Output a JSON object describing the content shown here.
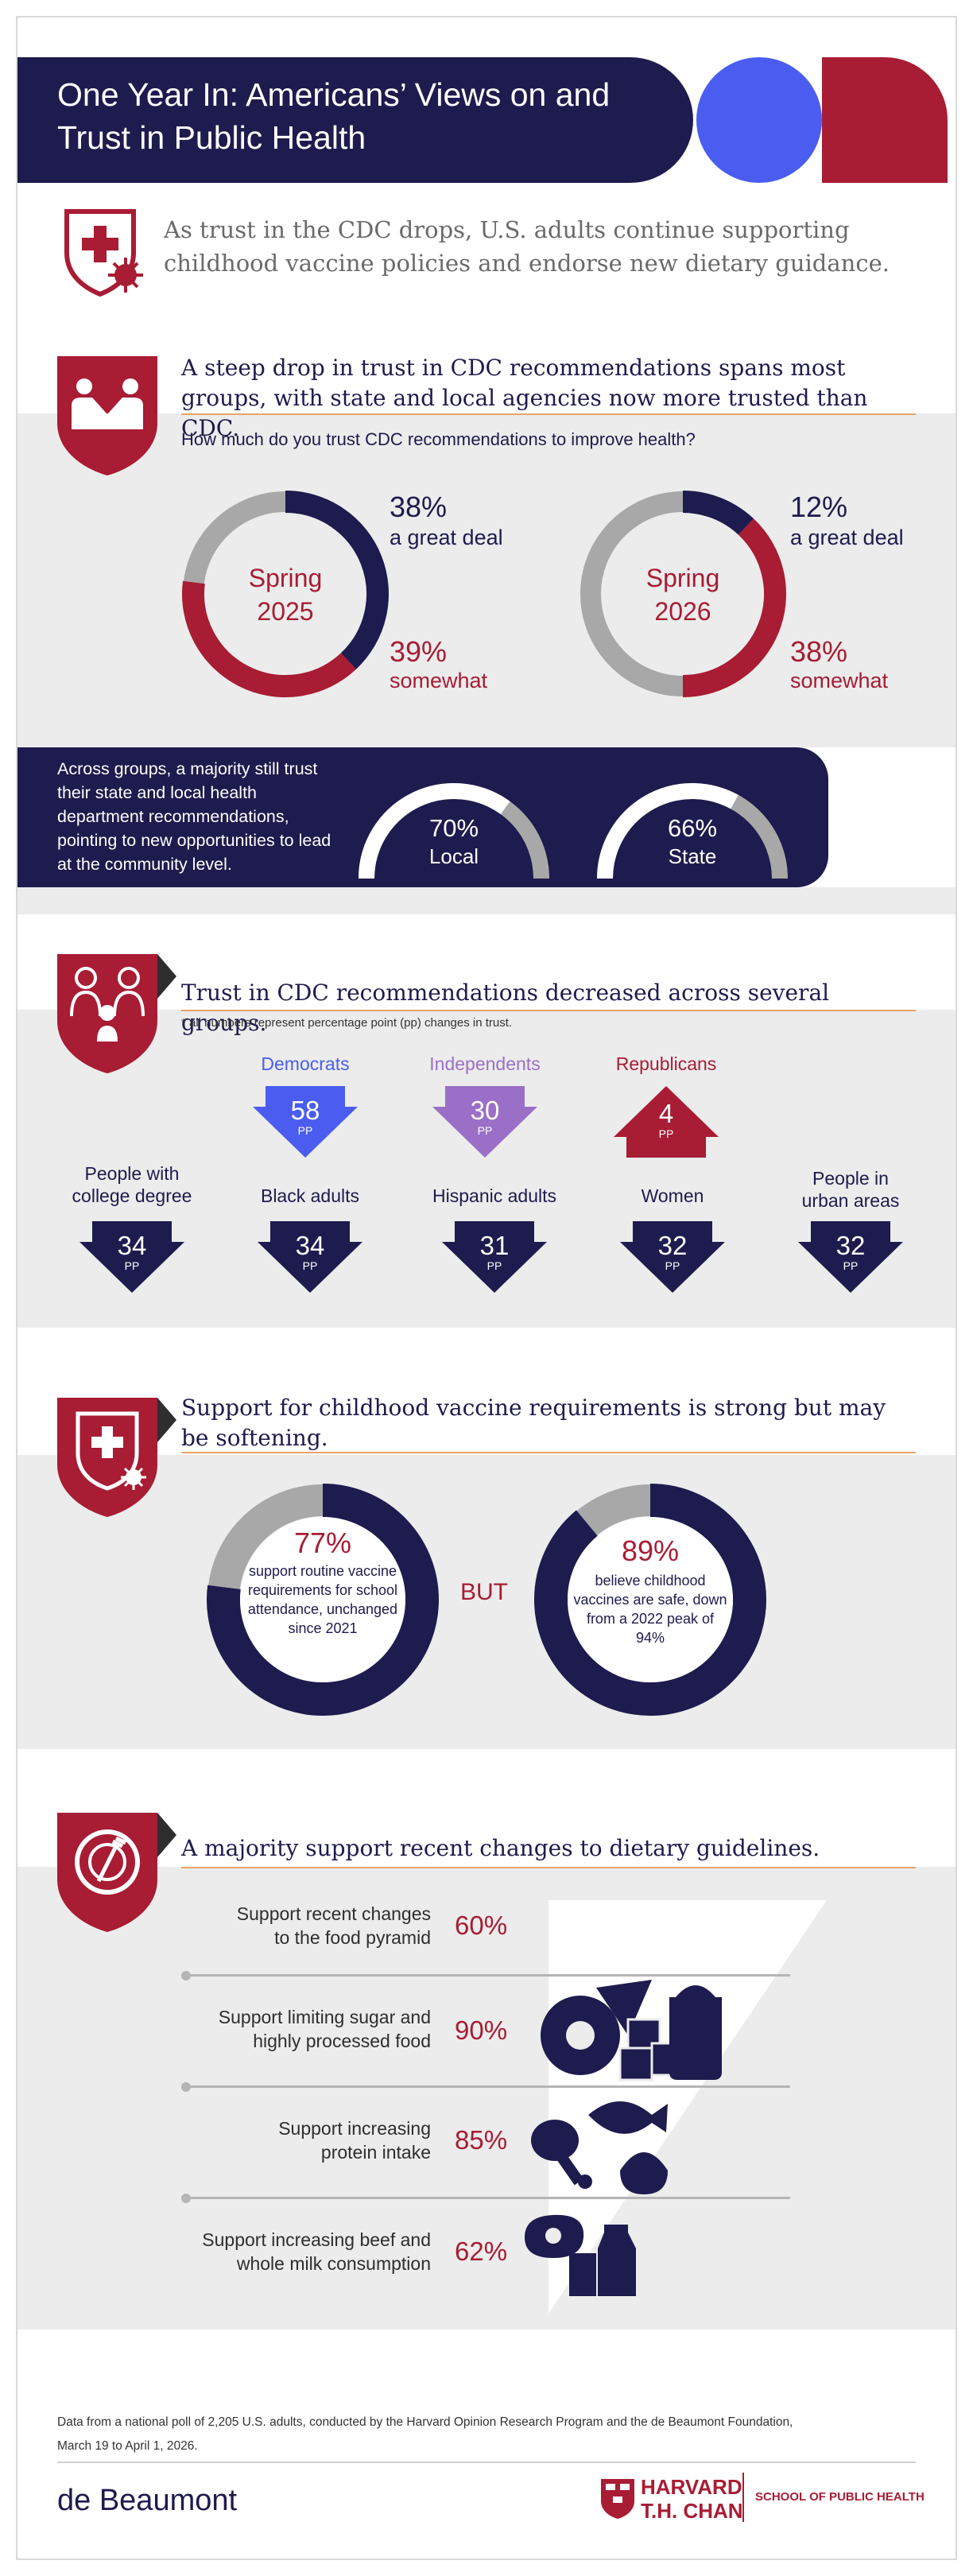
{
  "header": {
    "title": "One Year In: Americans’ Views on and Trust in Public Health",
    "intro": "As trust in the CDC drops, U.S. adults continue supporting childhood vaccine policies and endorse new dietary guidance."
  },
  "section1": {
    "heading": "A steep drop in trust in CDC recommendations spans most groups, with state and local agencies now more trusted than CDC.",
    "question": "How much do you trust CDC recommendations to improve health?",
    "donuts": [
      {
        "label_line1": "Spring",
        "label_line2": "2025",
        "great_deal_pct": "38%",
        "great_deal_label": "a great deal",
        "somewhat_pct": "39%",
        "somewhat_label": "somewhat"
      },
      {
        "label_line1": "Spring",
        "label_line2": "2026",
        "great_deal_pct": "12%",
        "great_deal_label": "a great deal",
        "somewhat_pct": "38%",
        "somewhat_label": "somewhat"
      }
    ],
    "local_text": "Across groups, a majority still trust their state and local health department recommendations, pointing to new opportunities to lead at the community level.",
    "gauges": [
      {
        "value": "70%",
        "label": "Local"
      },
      {
        "value": "66%",
        "label": "State"
      }
    ]
  },
  "section2": {
    "heading": "Trust in CDC recommendations decreased across several groups.",
    "note": "* all numbers represent percentage point (pp) changes in trust.",
    "unit": "PP",
    "parties": [
      {
        "name": "Democrats",
        "value": "58",
        "direction": "down",
        "color": "#4a5df0"
      },
      {
        "name": "Independents",
        "value": "30",
        "direction": "down",
        "color": "#9b6fc7"
      },
      {
        "name": "Republicans",
        "value": "4",
        "direction": "up",
        "color": "#a81c34"
      }
    ],
    "groups": [
      {
        "name_line1": "People with",
        "name_line2": "college degree",
        "value": "34"
      },
      {
        "name_line1": "",
        "name_line2": "Black adults",
        "value": "34"
      },
      {
        "name_line1": "",
        "name_line2": "Hispanic adults",
        "value": "31"
      },
      {
        "name_line1": "",
        "name_line2": "Women",
        "value": "32"
      },
      {
        "name_line1": "People in",
        "name_line2": "urban areas",
        "value": "32"
      }
    ]
  },
  "section3": {
    "heading": "Support for childhood vaccine requirements is strong but may be softening.",
    "left_pct": "77%",
    "left_text": "support routine vaccine requirements for school attendance, unchanged since 2021",
    "but": "BUT",
    "right_pct": "89%",
    "right_text": "believe childhood vaccines are safe, down from a 2022 peak of 94%"
  },
  "section4": {
    "heading": "A majority support recent changes to dietary guidelines.",
    "rows": [
      {
        "label_line1": "Support recent changes",
        "label_line2": "to the food pyramid",
        "value": "60%"
      },
      {
        "label_line1": "Support limiting sugar and",
        "label_line2": "highly processed food",
        "value": "90%"
      },
      {
        "label_line1": "Support increasing",
        "label_line2": "protein intake",
        "value": "85%"
      },
      {
        "label_line1": "Support increasing beef and",
        "label_line2": "whole milk consumption",
        "value": "62%"
      }
    ]
  },
  "footer": {
    "source_line1": "Data from a national poll of 2,205 U.S. adults, conducted by the Harvard Opinion Research Program and the de Beaumont Foundation,",
    "source_line2": "March 19 to April 1, 2026.",
    "logo_left": "de Beaumont",
    "logo_harvard_line1": "HARVARD",
    "logo_harvard_line2": "T.H. CHAN",
    "logo_school": "SCHOOL OF PUBLIC HEALTH"
  },
  "colors": {
    "navy": "#1e1b4e",
    "red": "#a81c34",
    "blue": "#4a5df0",
    "purple": "#9b6fc7",
    "gray": "#a8a8a8",
    "band": "#ececec"
  },
  "chart_data": [
    {
      "type": "pie",
      "categories": [
        "a great deal",
        "somewhat"
      ],
      "values": [
        38,
        39
      ],
      "title": "Spring 2025"
    },
    {
      "type": "pie",
      "categories": [
        "a great deal",
        "somewhat"
      ],
      "values": [
        12,
        38
      ],
      "title": "Spring 2026"
    },
    {
      "type": "bar",
      "categories": [
        "Local",
        "State"
      ],
      "values": [
        70,
        66
      ]
    },
    {
      "type": "bar",
      "categories": [
        "Democrats",
        "Independents",
        "Republicans",
        "People with college degree",
        "Black adults",
        "Hispanic adults",
        "Women",
        "People in urban areas"
      ],
      "values": [
        -58,
        -30,
        4,
        -34,
        -34,
        -31,
        -32,
        -32
      ]
    },
    {
      "type": "pie",
      "categories": [
        "support routine vaccine requirements",
        "believe childhood vaccines are safe"
      ],
      "values": [
        77,
        89
      ]
    },
    {
      "type": "bar",
      "categories": [
        "Support recent changes to the food pyramid",
        "Support limiting sugar and highly processed food",
        "Support increasing protein intake",
        "Support increasing beef and whole milk consumption"
      ],
      "values": [
        60,
        90,
        85,
        62
      ]
    }
  ]
}
